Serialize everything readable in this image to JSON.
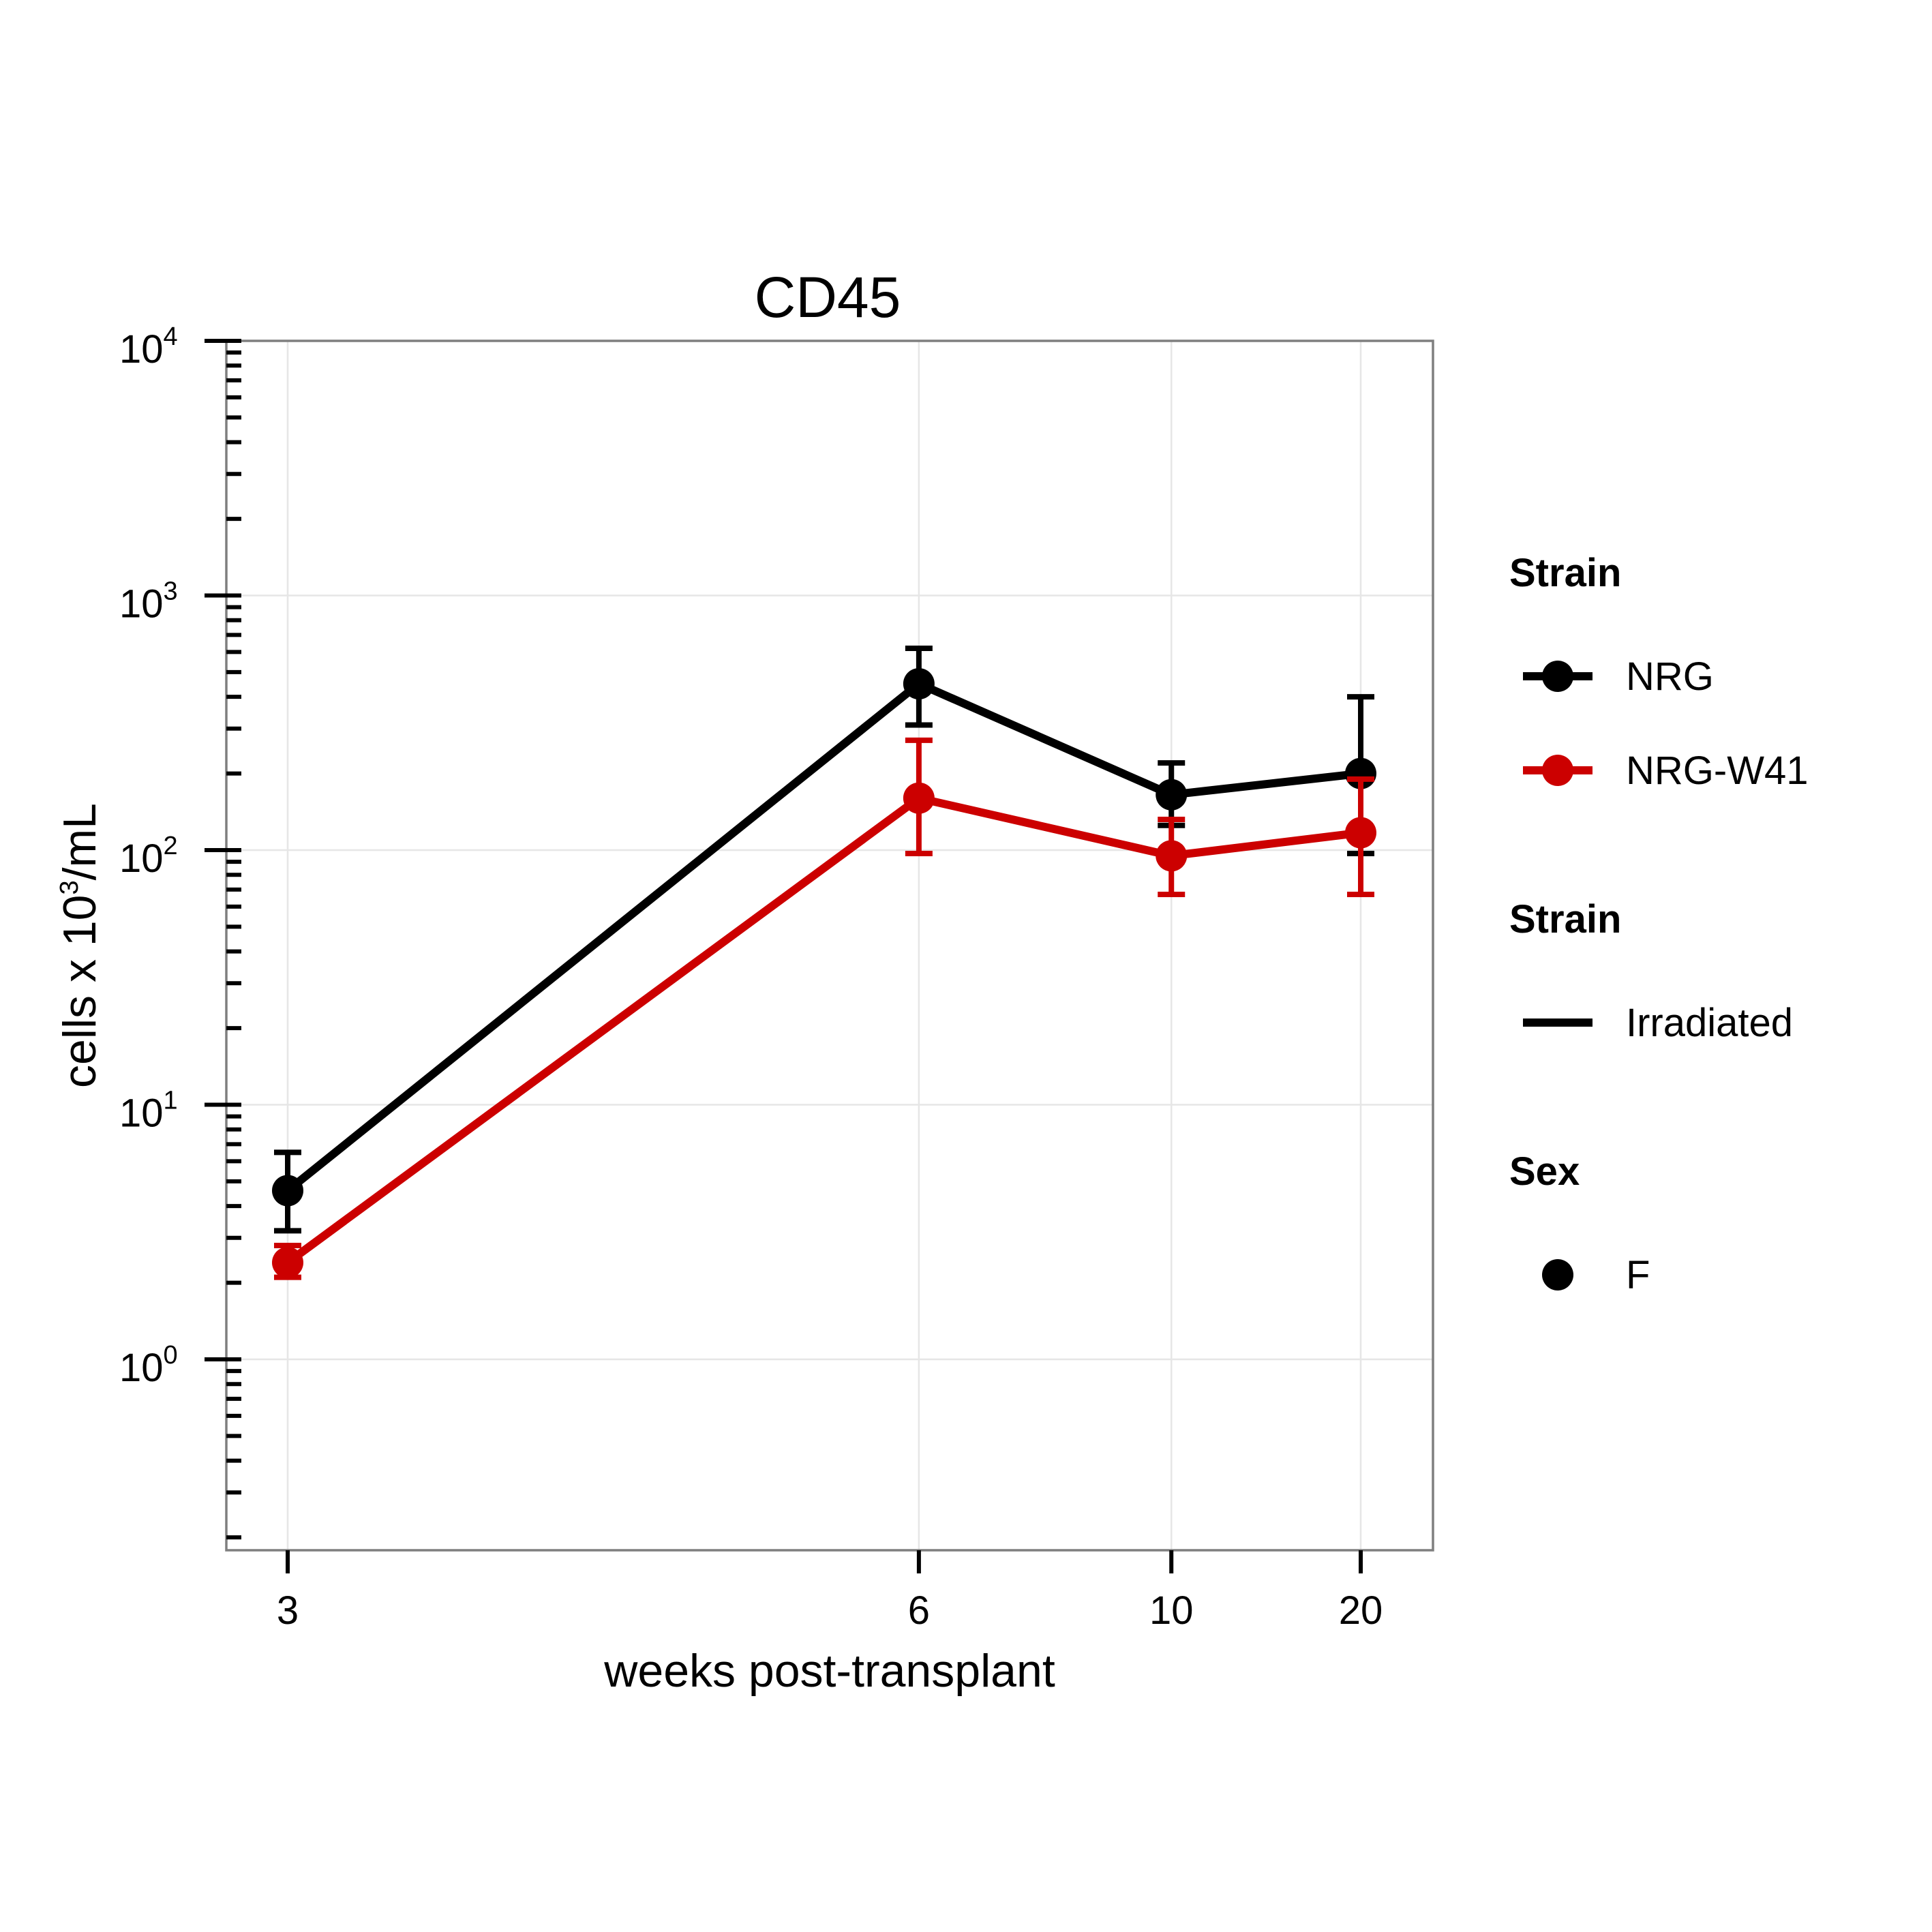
{
  "chart_data": {
    "type": "line",
    "title": "CD45",
    "xlabel": "weeks post-transplant",
    "ylabel": {
      "prefix": "cells x 10",
      "superscript": "3",
      "suffix": "/mL"
    },
    "x_scale": "reciprocal",
    "y_scale": "log10",
    "x": [
      3,
      6,
      10,
      20
    ],
    "x_ticks": [
      "3",
      "6",
      "10",
      "20"
    ],
    "y_ticks": [
      {
        "base": "10",
        "exp": "0",
        "value": 1
      },
      {
        "base": "10",
        "exp": "1",
        "value": 10
      },
      {
        "base": "10",
        "exp": "2",
        "value": 100
      },
      {
        "base": "10",
        "exp": "3",
        "value": 1000
      },
      {
        "base": "10",
        "exp": "4",
        "value": 10000
      }
    ],
    "ylim": [
      0.2,
      10000
    ],
    "grid": true,
    "series": [
      {
        "name": "NRG",
        "color": "#000000",
        "values": [
          4.6,
          450,
          165,
          200
        ],
        "err_low": [
          3.2,
          310,
          125,
          97
        ],
        "err_high": [
          6.5,
          620,
          220,
          400
        ]
      },
      {
        "name": "NRG-W41",
        "color": "#cc0000",
        "values": [
          2.4,
          160,
          95,
          117
        ],
        "err_low": [
          2.1,
          97,
          67,
          67
        ],
        "err_high": [
          2.8,
          270,
          132,
          190
        ]
      }
    ],
    "legend": {
      "position": "right",
      "groups": [
        {
          "title": "Strain",
          "entries": [
            {
              "label": "NRG",
              "color": "#000000",
              "symbol": "line-point"
            },
            {
              "label": "NRG-W41",
              "color": "#cc0000",
              "symbol": "line-point"
            }
          ]
        },
        {
          "title": "Strain",
          "entries": [
            {
              "label": "Irradiated",
              "color": "#000000",
              "symbol": "line"
            }
          ]
        },
        {
          "title": "Sex",
          "entries": [
            {
              "label": "F",
              "color": "#000000",
              "symbol": "point"
            }
          ]
        }
      ]
    }
  }
}
